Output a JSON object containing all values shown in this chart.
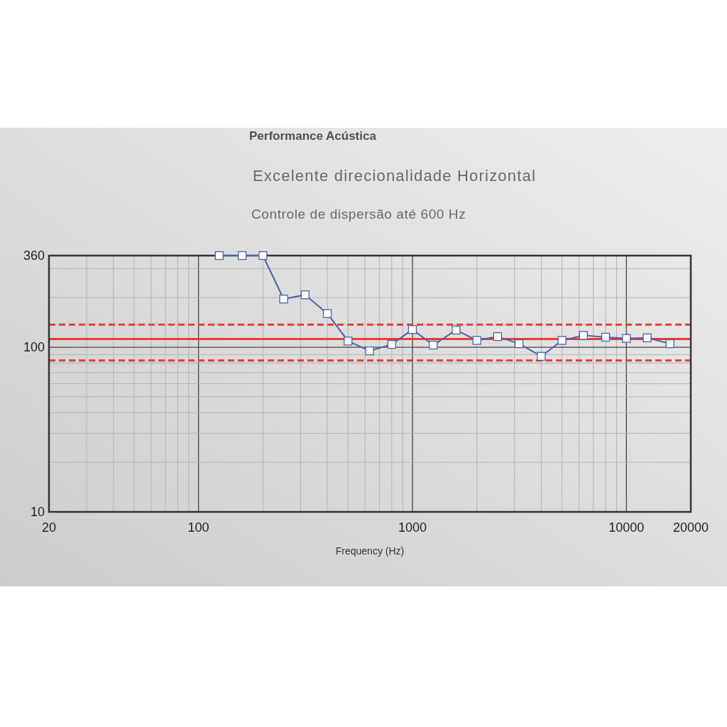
{
  "chart_data": {
    "type": "line",
    "title": "Performance Acústica",
    "subtitle": "Excelente direcionalidade Horizontal",
    "annotations": [
      "Controle de dispersão até 600 Hz"
    ],
    "xlabel": "Frequency (Hz)",
    "x": [
      125,
      160,
      200,
      250,
      315,
      400,
      500,
      630,
      800,
      1000,
      1250,
      1600,
      2000,
      2500,
      3150,
      4000,
      5000,
      6300,
      8000,
      10000,
      12500,
      16000
    ],
    "series": [
      {
        "color": "#4a62a8",
        "values": [
          360,
          360,
          360,
          196,
          208,
          160,
          109,
          95,
          104,
          128,
          103,
          127,
          110,
          116,
          105,
          88,
          110,
          118,
          115,
          113,
          114,
          105
        ]
      }
    ],
    "log": "xy",
    "xlim": [
      20,
      20000
    ],
    "xticks": [
      20,
      {
        "value": 30,
        "label": null
      },
      {
        "value": 40,
        "label": null
      },
      {
        "value": 50,
        "label": null
      },
      {
        "value": 60,
        "label": null
      },
      {
        "value": 70,
        "label": null
      },
      {
        "value": 80,
        "label": null
      },
      {
        "value": 90,
        "label": null
      },
      100,
      {
        "value": 200,
        "label": null
      },
      {
        "value": 300,
        "label": null
      },
      {
        "value": 400,
        "label": null
      },
      {
        "value": 500,
        "label": null
      },
      {
        "value": 600,
        "label": null
      },
      {
        "value": 700,
        "label": null
      },
      {
        "value": 800,
        "label": null
      },
      {
        "value": 900,
        "label": null
      },
      1000,
      {
        "value": 2000,
        "label": null
      },
      {
        "value": 3000,
        "label": null
      },
      {
        "value": 4000,
        "label": null
      },
      {
        "value": 5000,
        "label": null
      },
      {
        "value": 6000,
        "label": null
      },
      {
        "value": 7000,
        "label": null
      },
      {
        "value": 8000,
        "label": null
      },
      {
        "value": 9000,
        "label": null
      },
      10000,
      20000
    ],
    "ylim": [
      10,
      360
    ],
    "yticks": [
      10,
      {
        "value": 20,
        "label": null
      },
      {
        "value": 30,
        "label": null
      },
      {
        "value": 40,
        "label": null
      },
      {
        "value": 50,
        "label": null
      },
      {
        "value": 60,
        "label": null
      },
      {
        "value": 70,
        "label": null
      },
      {
        "value": 80,
        "label": null
      },
      {
        "value": 90,
        "label": null
      },
      100,
      {
        "value": 200,
        "label": null
      },
      {
        "value": 300,
        "label": null
      },
      360
    ],
    "grid": true,
    "marker": "square",
    "ref_lines": [
      {
        "axis": "y",
        "value": 137,
        "color": "#f0392f",
        "line_style": "dashed"
      },
      {
        "axis": "y",
        "value": 112,
        "color": "#f0392f",
        "line_style": "solid"
      },
      {
        "axis": "y",
        "value": 83,
        "color": "#f0392f",
        "line_style": "dashed"
      }
    ]
  }
}
